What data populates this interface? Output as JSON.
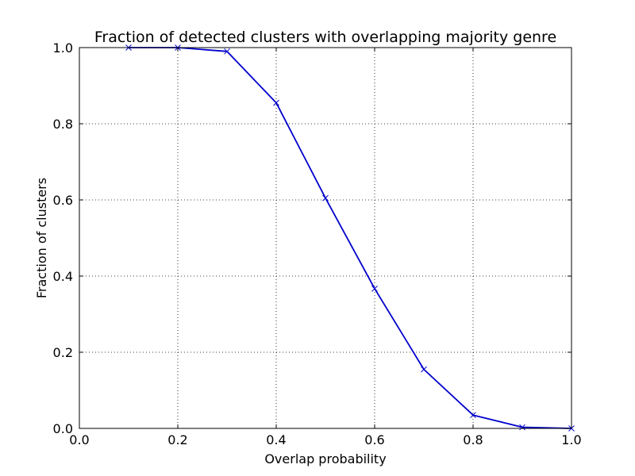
{
  "chart_data": {
    "type": "line",
    "title": "Fraction of detected clusters with overlapping majority genre",
    "xlabel": "Overlap probability",
    "ylabel": "Fraction of clusters",
    "xlim": [
      0.0,
      1.0
    ],
    "ylim": [
      0.0,
      1.0
    ],
    "x_ticks": [
      0.0,
      0.2,
      0.4,
      0.6,
      0.8,
      1.0
    ],
    "y_ticks": [
      0.0,
      0.2,
      0.4,
      0.6,
      0.8,
      1.0
    ],
    "x_tick_labels": [
      "0.0",
      "0.2",
      "0.4",
      "0.6",
      "0.8",
      "1.0"
    ],
    "y_tick_labels": [
      "0.0",
      "0.2",
      "0.4",
      "0.6",
      "0.8",
      "1.0"
    ],
    "grid": true,
    "series": [
      {
        "x": [
          0.1,
          0.2,
          0.3,
          0.4,
          0.5,
          0.6,
          0.7,
          0.8,
          0.9,
          1.0
        ],
        "values": [
          1.0,
          1.0,
          0.99,
          0.855,
          0.605,
          0.367,
          0.155,
          0.035,
          0.003,
          0.0
        ],
        "color": "#0000cc",
        "marker": "x"
      }
    ]
  }
}
